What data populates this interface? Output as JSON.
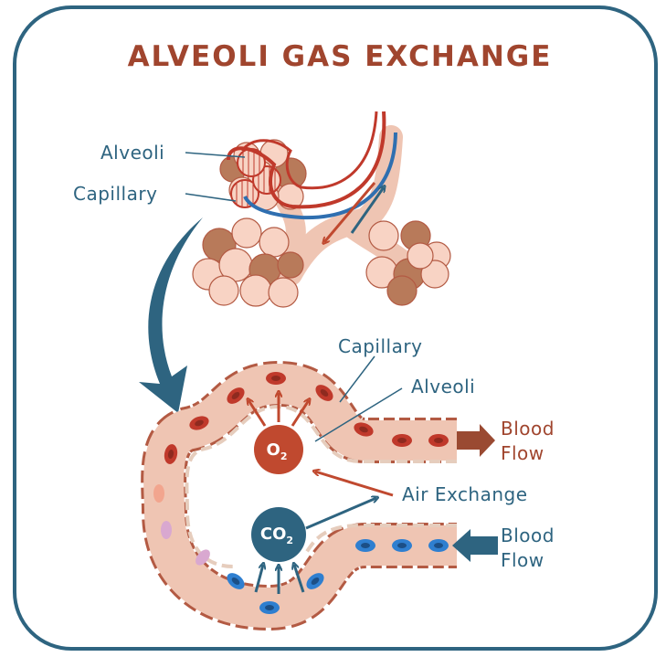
{
  "title": "ALVEOLI GAS EXCHANGE",
  "top_labels": {
    "alveoli": "Alveoli",
    "capillary": "Capillary"
  },
  "detail_labels": {
    "capillary": "Capillary",
    "alveoli": "Alveoli",
    "air_exchange": "Air Exchange",
    "blood_flow_out": [
      "Blood",
      "Flow"
    ],
    "blood_flow_in": [
      "Blood",
      "Flow"
    ]
  },
  "gases": {
    "o2": {
      "symbol": "O",
      "subscript": "2"
    },
    "co2": {
      "symbol": "CO",
      "subscript": "2"
    }
  }
}
